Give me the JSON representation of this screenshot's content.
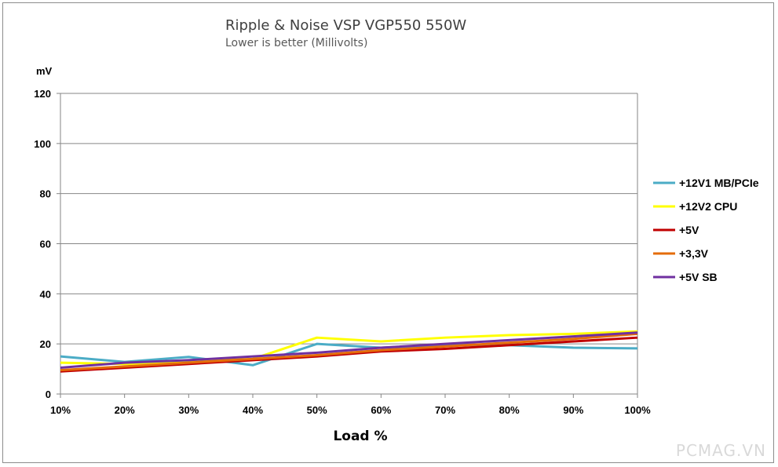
{
  "chart_data": {
    "type": "line",
    "title": "Ripple & Noise VSP VGP550 550W",
    "subtitle": "Lower is better (Millivolts)",
    "xlabel": "Load %",
    "ylabel": "mV",
    "categories": [
      "10%",
      "20%",
      "30%",
      "40%",
      "50%",
      "60%",
      "70%",
      "80%",
      "90%",
      "100%"
    ],
    "ylim": [
      0,
      120
    ],
    "yticks": [
      0,
      20,
      40,
      60,
      80,
      100,
      120
    ],
    "grid": true,
    "legend_position": "right",
    "series": [
      {
        "name": "+12V1 MB/PCIe",
        "color": "#4bacc6",
        "values": [
          15,
          12.8,
          14.8,
          11.5,
          20,
          18.5,
          19.5,
          19.5,
          18.5,
          18.2
        ]
      },
      {
        "name": "+12V2 CPU",
        "color": "#ffff00",
        "values": [
          12.5,
          12,
          13,
          14,
          22.5,
          21,
          22.5,
          23.5,
          24,
          25
        ]
      },
      {
        "name": "+5V",
        "color": "#c00000",
        "values": [
          9,
          10.5,
          12,
          13.5,
          15,
          17,
          18,
          19.5,
          21,
          22.5
        ]
      },
      {
        "name": "+3,3V",
        "color": "#e46c0a",
        "values": [
          9.5,
          11,
          12.5,
          14,
          15.5,
          17.5,
          19,
          20.5,
          22,
          24
        ]
      },
      {
        "name": "+5V SB",
        "color": "#7030a0",
        "values": [
          10.5,
          12.5,
          13.5,
          15,
          16.5,
          18.5,
          20,
          21.5,
          23,
          24.5
        ]
      }
    ]
  },
  "watermark": "PCMAG.VN"
}
